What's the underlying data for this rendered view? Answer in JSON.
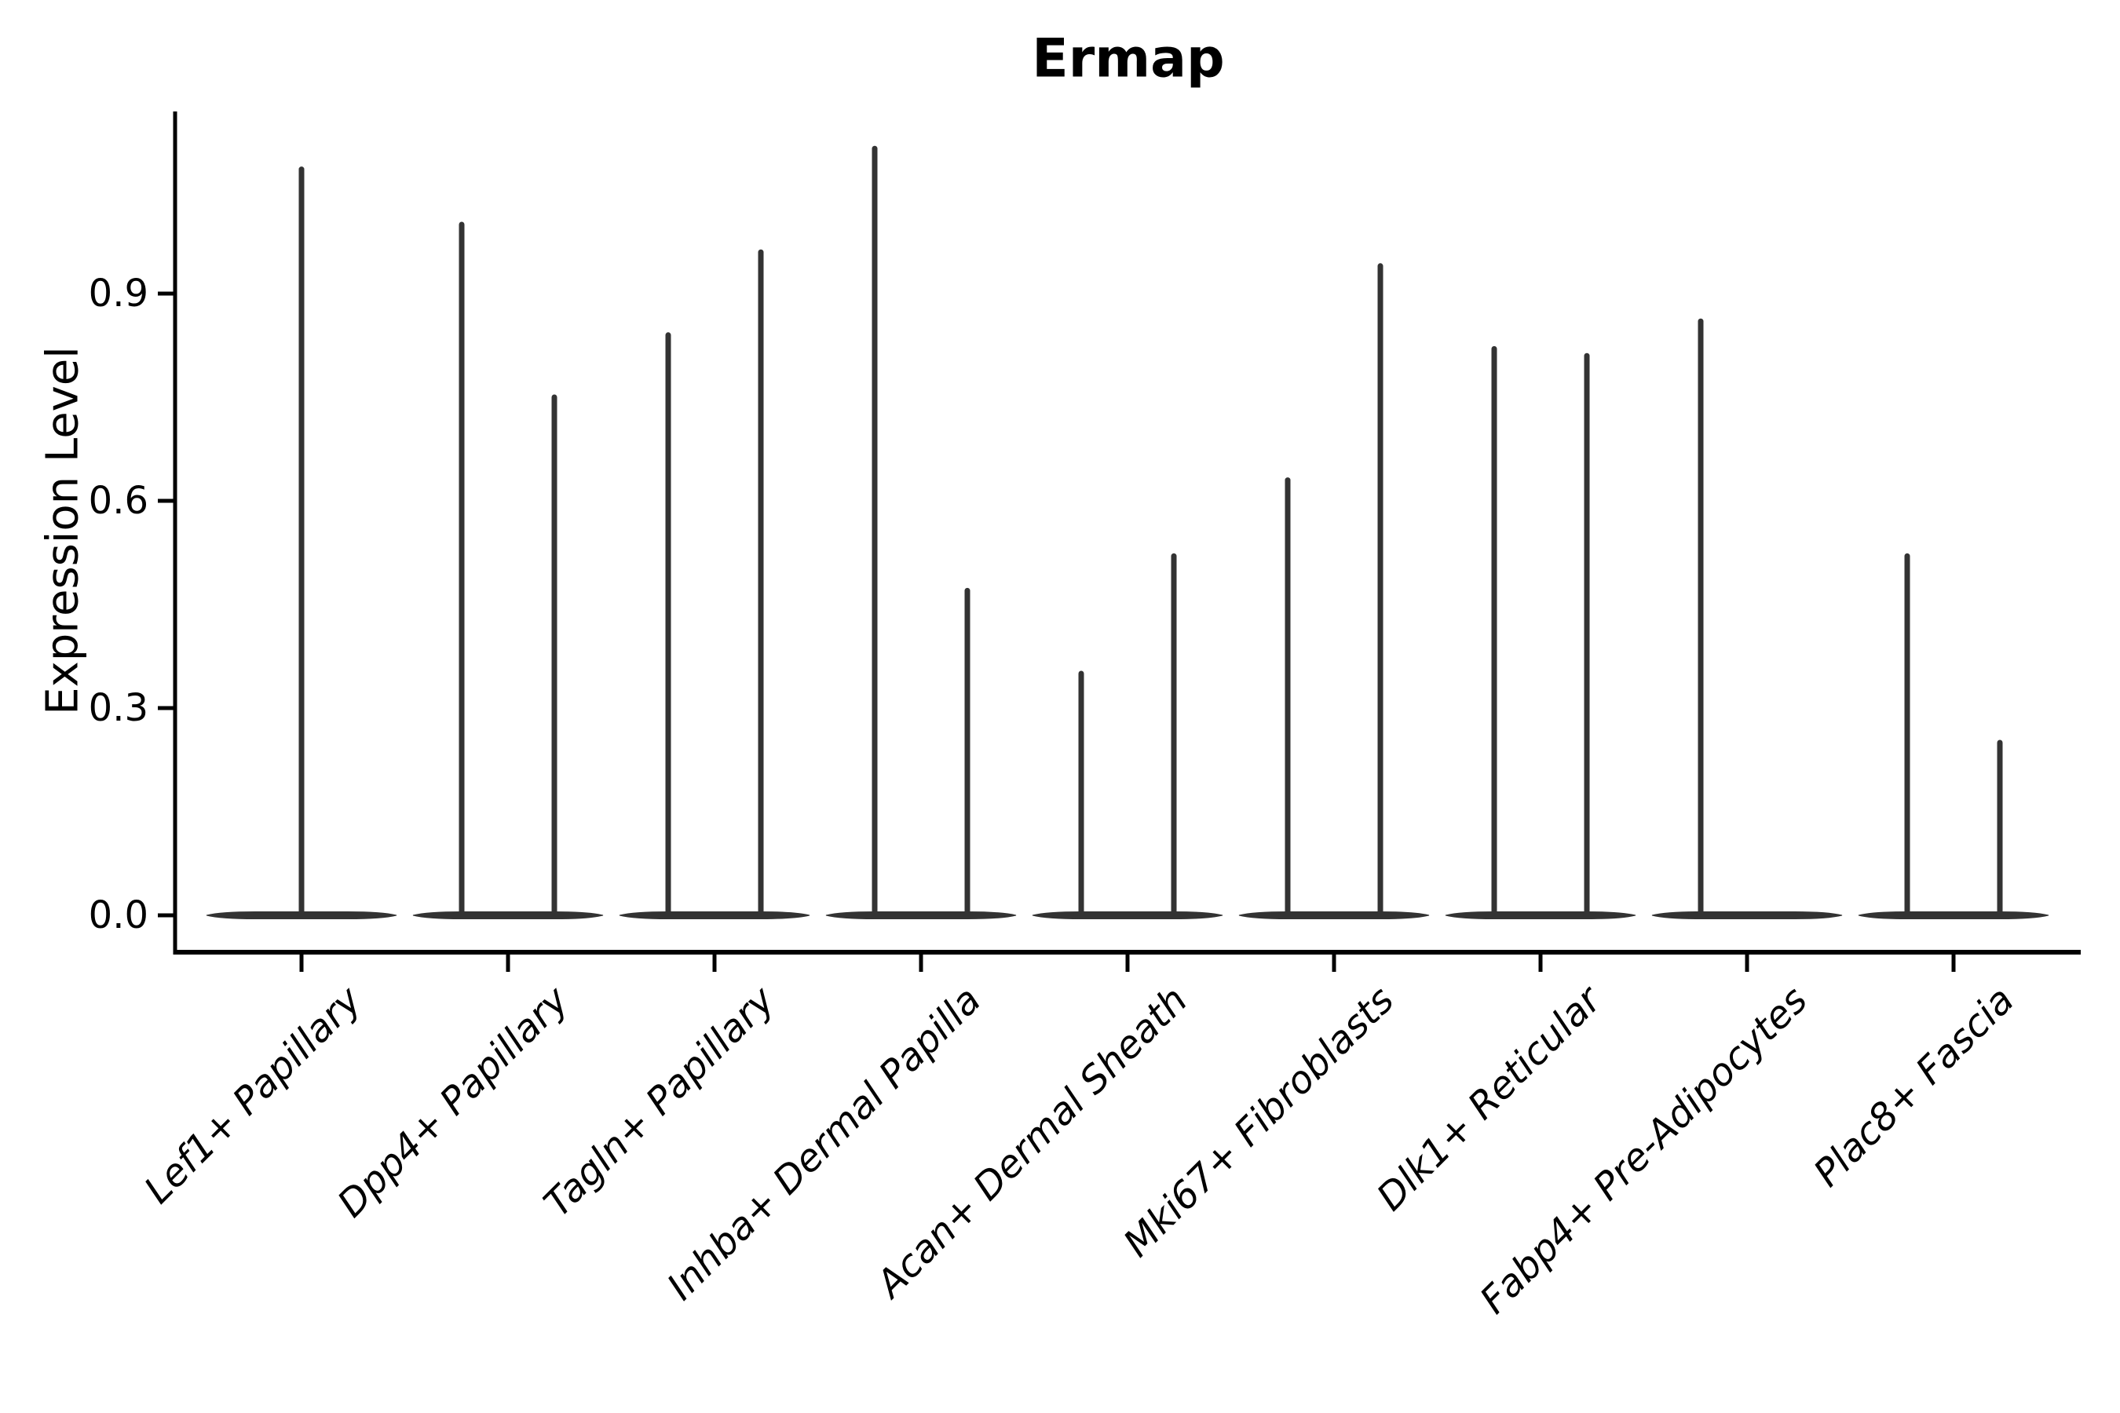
{
  "figure": {
    "title": "Ermap",
    "ylabel": "Expression Level"
  },
  "colors": {
    "violin": "#333333",
    "axis": "#000000",
    "text": "#000000",
    "background": "#ffffff"
  },
  "chart_data": {
    "type": "violin",
    "title": "Ermap",
    "xlabel": "",
    "ylabel": "Expression Level",
    "ytick_labels": [
      "0.0",
      "0.3",
      "0.6",
      "0.9"
    ],
    "ytick_values": [
      0.0,
      0.3,
      0.6,
      0.9
    ],
    "ylim": [
      -0.053,
      1.166
    ],
    "grid": false,
    "legend": "none",
    "note": "Each cell-type group shows thin violins: a wide flat density lobe at 0 expression with narrow spikes reaching the maximum expression value.",
    "categories": [
      "Lef1+ Papillary",
      "Dpp4+ Papillary",
      "Tagln+ Papillary",
      "Inhba+ Dermal Papilla",
      "Acan+ Dermal Sheath",
      "Mki67+ Fibroblasts",
      "Dlk1+ Reticular",
      "Fabp4+ Pre-Adipocytes",
      "Plac8+ Fascia"
    ],
    "series": [
      {
        "category": "Lef1+ Papillary",
        "violins": [
          {
            "position": "center",
            "min": 0,
            "peak": 1.08
          }
        ]
      },
      {
        "category": "Dpp4+ Papillary",
        "violins": [
          {
            "position": "left",
            "min": 0,
            "peak": 1.0
          },
          {
            "position": "right",
            "min": 0,
            "peak": 0.75
          }
        ]
      },
      {
        "category": "Tagln+ Papillary",
        "violins": [
          {
            "position": "left",
            "min": 0,
            "peak": 0.84
          },
          {
            "position": "right",
            "min": 0,
            "peak": 0.96
          }
        ]
      },
      {
        "category": "Inhba+ Dermal Papilla",
        "violins": [
          {
            "position": "left",
            "min": 0,
            "peak": 1.11
          },
          {
            "position": "right",
            "min": 0,
            "peak": 0.47
          }
        ]
      },
      {
        "category": "Acan+ Dermal Sheath",
        "violins": [
          {
            "position": "left",
            "min": 0,
            "peak": 0.35
          },
          {
            "position": "right",
            "min": 0,
            "peak": 0.52
          }
        ]
      },
      {
        "category": "Mki67+ Fibroblasts",
        "violins": [
          {
            "position": "left",
            "min": 0,
            "peak": 0.63
          },
          {
            "position": "right",
            "min": 0,
            "peak": 0.94
          }
        ]
      },
      {
        "category": "Dlk1+ Reticular",
        "violins": [
          {
            "position": "left",
            "min": 0,
            "peak": 0.82
          },
          {
            "position": "right",
            "min": 0,
            "peak": 0.81
          }
        ]
      },
      {
        "category": "Fabp4+ Pre-Adipocytes",
        "violins": [
          {
            "position": "left",
            "min": 0,
            "peak": 0.86
          }
        ]
      },
      {
        "category": "Plac8+ Fascia",
        "violins": [
          {
            "position": "left",
            "min": 0,
            "peak": 0.52
          },
          {
            "position": "right",
            "min": 0,
            "peak": 0.25
          }
        ]
      }
    ]
  }
}
